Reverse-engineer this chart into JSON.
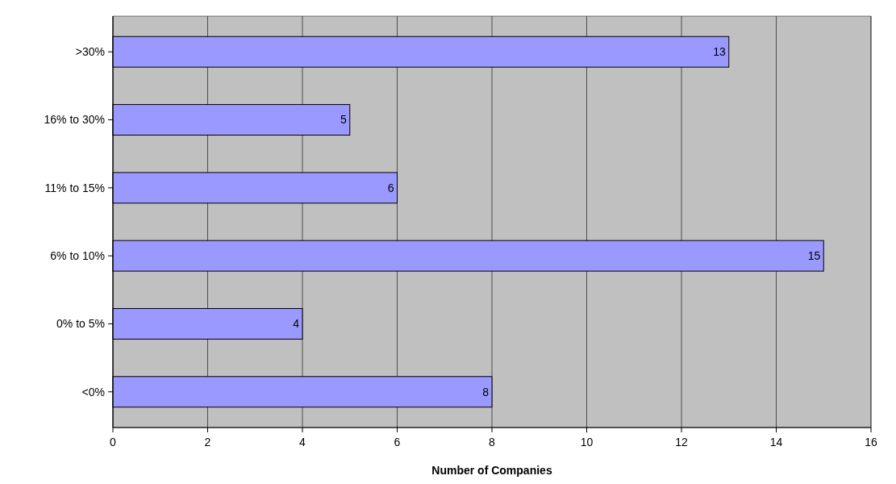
{
  "chart_data": {
    "type": "bar",
    "orientation": "horizontal",
    "categories": [
      ">30%",
      "16% to 30%",
      "11% to 15%",
      "6% to 10%",
      "0% to 5%",
      "<0%"
    ],
    "values": [
      13,
      5,
      6,
      15,
      4,
      8
    ],
    "color": "#9999ff",
    "xlabel": "Number of Companies",
    "xlim": [
      0,
      16
    ],
    "xticks": [
      0,
      2,
      4,
      6,
      8,
      10,
      12,
      14,
      16
    ],
    "grid": "x",
    "data_labels": true
  }
}
